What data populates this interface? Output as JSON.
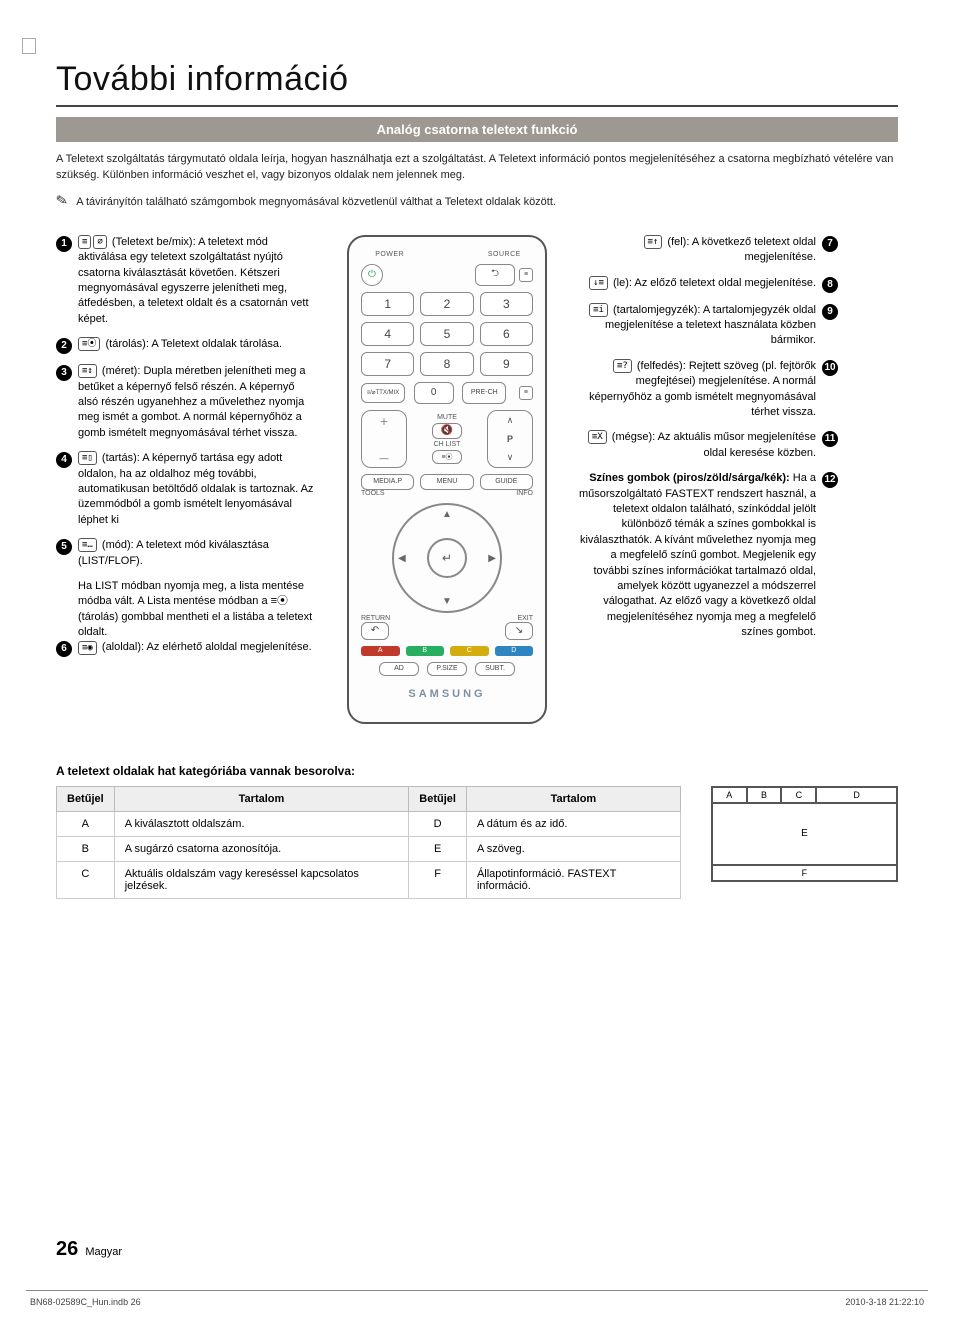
{
  "page": {
    "title": "További információ",
    "band": "Analóg csatorna teletext funkció",
    "intro": "A Teletext szolgáltatás tárgymutató oldala leírja, hogyan használhatja ezt a szolgáltatást. A Teletext információ pontos megjelenítéséhez a csatorna megbízható vételére van szükség. Különben információ veszhet el, vagy bizonyos oldalak nem jelennek meg.",
    "note": "A távirányítón található számgombok megnyomásával közvetlenül válthat a Teletext oldalak között.",
    "pageNumber": "26",
    "pageLang": "Magyar",
    "docRef": "BN68-02589C_Hun.indb   26",
    "timestamp": "2010-3-18   21:22:10"
  },
  "leftItems": [
    {
      "num": "1",
      "keys": [
        "≡",
        "⌀"
      ],
      "label": "(Teletext be/mix):",
      "text": "A teletext mód aktiválása egy teletext szolgáltatást nyújtó csatorna kiválasztását követően. Kétszeri megnyomásával egyszerre jelenítheti meg, átfedésben, a teletext oldalt és a csatornán vett képet."
    },
    {
      "num": "2",
      "keys": [
        "≡⦿"
      ],
      "label": "(tárolás):",
      "text": "A Teletext oldalak tárolása."
    },
    {
      "num": "3",
      "keys": [
        "≡↕"
      ],
      "label": "(méret):",
      "text": "Dupla méretben jelenítheti meg a betűket a képernyő felső részén. A képernyő alsó részén ugyanehhez a művelethez nyomja meg ismét a gombot. A normál képernyőhöz a gomb ismételt megnyomásával térhet vissza."
    },
    {
      "num": "4",
      "keys": [
        "≡▯"
      ],
      "label": "(tartás):",
      "text": "A képernyő tartása egy adott oldalon, ha az oldalhoz még további, automatikusan betöltődő oldalak is tartoznak. Az üzemmódból a gomb ismételt lenyomásával léphet ki"
    },
    {
      "num": "5",
      "keys": [
        "≡…"
      ],
      "label": "(mód):",
      "text": "A teletext mód kiválasztása (LIST/FLOF).",
      "sub": "Ha LIST módban nyomja meg, a lista mentése módba vált. A Lista mentése módban a ≡⦿ (tárolás) gombbal mentheti el a listába a teletext oldalt."
    },
    {
      "num": "6",
      "keys": [
        "≡◉"
      ],
      "label": "(aloldal):",
      "text": "Az elérhető aloldal megjelenítése."
    }
  ],
  "rightItems": [
    {
      "num": "7",
      "keys": [
        "≡↑"
      ],
      "label": "(fel):",
      "text": "A következő teletext oldal megjelenítése."
    },
    {
      "num": "8",
      "keys": [
        "↓≡"
      ],
      "label": "(le):",
      "text": "Az előző teletext oldal megjelenítése."
    },
    {
      "num": "9",
      "keys": [
        "≡i"
      ],
      "label": "(tartalomjegyzék):",
      "text": "A tartalomjegyzék oldal megjelenítése a teletext használata közben bármikor."
    },
    {
      "num": "10",
      "keys": [
        "≡?"
      ],
      "label": "(felfedés):",
      "text": "Rejtett szöveg (pl. fejtörők megfejtései) megjelenítése. A normál képernyőhöz a gomb ismételt megnyomásával térhet vissza."
    },
    {
      "num": "11",
      "keys": [
        "≡X"
      ],
      "label": "(mégse):",
      "text": "Az aktuális műsor megjelenítése oldal keresése közben."
    },
    {
      "num": "12",
      "keys": [],
      "label": "Színes gombok (piros/zöld/sárga/kék):",
      "text": "Ha a műsorszolgáltató FASTEXT rendszert használ, a teletext oldalon található, színkóddal jelölt különböző témák a színes gombokkal is kiválaszthatók. A kívánt művelethez nyomja meg a megfelelő színű gombot. Megjelenik egy további színes információkat tartalmazó oldal, amelyek között ugyanezzel a módszerrel válogathat. Az előző vagy a következő oldal megjelenítéséhez nyomja meg a megfelelő színes gombot.",
      "bold": true
    }
  ],
  "remote": {
    "power": "POWER",
    "source": "SOURCE",
    "numbers": [
      "1",
      "2",
      "3",
      "4",
      "5",
      "6",
      "7",
      "8",
      "9"
    ],
    "ttxmix": "TTX/MIX",
    "zero": "0",
    "prech": "PRE-CH",
    "mute": "MUTE",
    "chlist": "CH LIST",
    "mediap": "MEDIA.P",
    "menu": "MENU",
    "guide": "GUIDE",
    "tools": "TOOLS",
    "info": "INFO",
    "return": "RETURN",
    "exit": "EXIT",
    "ad": "AD",
    "psize": "P.SIZE",
    "subt": "SUBT.",
    "brand": "SAMSUNG",
    "colorLetters": [
      "A",
      "B",
      "C",
      "D"
    ],
    "colors": [
      "#c0392b",
      "#27ae60",
      "#d4ac0d",
      "#2e86c1"
    ]
  },
  "tableSection": {
    "caption": "A teletext oldalak hat kategóriába vannak besorolva:",
    "headers": [
      "Betűjel",
      "Tartalom",
      "Betűjel",
      "Tartalom"
    ],
    "rows": [
      [
        "A",
        "A kiválasztott oldalszám.",
        "D",
        "A dátum és az idő."
      ],
      [
        "B",
        "A sugárzó csatorna azonosítója.",
        "E",
        "A szöveg."
      ],
      [
        "C",
        "Aktuális oldalszám vagy kereséssel kapcsolatos jelzések.",
        "F",
        "Állapotinformáció. FASTEXT információ."
      ]
    ],
    "diagram": {
      "A": "A",
      "B": "B",
      "C": "C",
      "D": "D",
      "E": "E",
      "F": "F"
    }
  }
}
